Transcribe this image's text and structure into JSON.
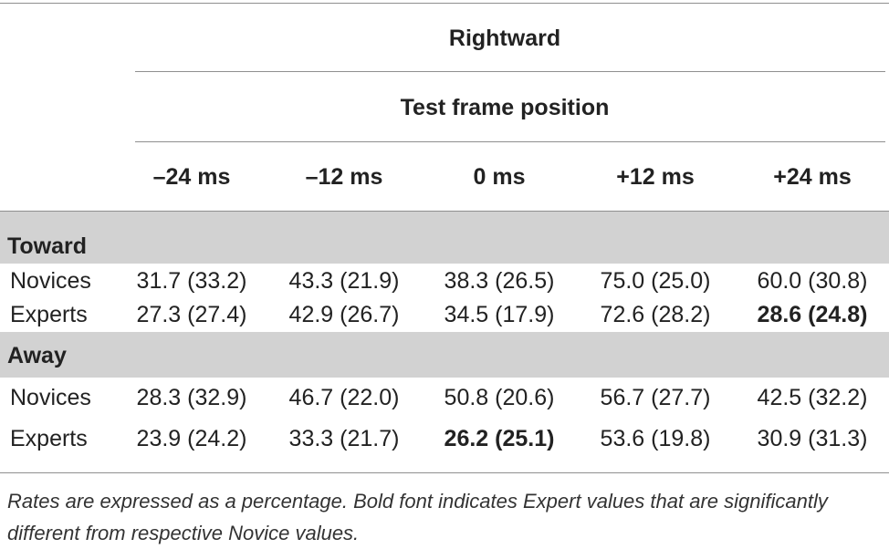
{
  "table": {
    "title": "Rightward",
    "subtitle": "Test frame position",
    "columns": [
      "–24 ms",
      "–12 ms",
      "0 ms",
      "+12 ms",
      "+24 ms"
    ],
    "groups": [
      {
        "label": "Toward",
        "rows": [
          {
            "label": "Novices",
            "cells": [
              {
                "text": "31.7 (33.2)",
                "bold": false
              },
              {
                "text": "43.3 (21.9)",
                "bold": false
              },
              {
                "text": "38.3 (26.5)",
                "bold": false
              },
              {
                "text": "75.0 (25.0)",
                "bold": false
              },
              {
                "text": "60.0 (30.8)",
                "bold": false
              }
            ]
          },
          {
            "label": "Experts",
            "cells": [
              {
                "text": "27.3 (27.4)",
                "bold": false
              },
              {
                "text": "42.9 (26.7)",
                "bold": false
              },
              {
                "text": "34.5 (17.9)",
                "bold": false
              },
              {
                "text": "72.6 (28.2)",
                "bold": false
              },
              {
                "text": "28.6 (24.8)",
                "bold": true
              }
            ]
          }
        ]
      },
      {
        "label": "Away",
        "rows": [
          {
            "label": "Novices",
            "cells": [
              {
                "text": "28.3 (32.9)",
                "bold": false
              },
              {
                "text": "46.7 (22.0)",
                "bold": false
              },
              {
                "text": "50.8 (20.6)",
                "bold": false
              },
              {
                "text": "56.7 (27.7)",
                "bold": false
              },
              {
                "text": "42.5 (32.2)",
                "bold": false
              }
            ]
          },
          {
            "label": "Experts",
            "cells": [
              {
                "text": "23.9 (24.2)",
                "bold": false
              },
              {
                "text": "33.3 (21.7)",
                "bold": false
              },
              {
                "text": "26.2 (25.1)",
                "bold": true
              },
              {
                "text": "53.6 (19.8)",
                "bold": false
              },
              {
                "text": "30.9 (31.3)",
                "bold": false
              }
            ]
          }
        ]
      }
    ],
    "footnote": "Rates are expressed as a percentage. Bold font indicates Expert values that are significantly different from respective Novice values."
  },
  "colors": {
    "band": "#d2d2d2",
    "rule": "#8f8f8f",
    "text": "#222222"
  }
}
